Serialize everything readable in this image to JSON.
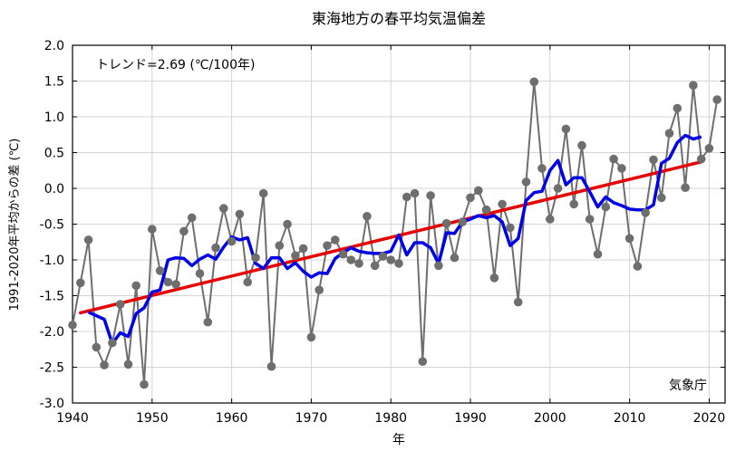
{
  "chart_data": {
    "type": "line",
    "title": "東海地方の春平均気温偏差",
    "xlabel": "年",
    "ylabel": "1991-2020年平均からの差 (℃)",
    "trend_label": "トレンド=2.69 (℃/100年)",
    "source": "気象庁",
    "xlim": [
      1940,
      2022
    ],
    "ylim": [
      -3.0,
      2.0
    ],
    "xticks": [
      1940,
      1950,
      1960,
      1970,
      1980,
      1990,
      2000,
      2010,
      2020
    ],
    "yticks": [
      -3.0,
      -2.5,
      -2.0,
      -1.5,
      -1.0,
      -0.5,
      0.0,
      0.5,
      1.0,
      1.5,
      2.0
    ],
    "ytick_labels": [
      "-3.0",
      "-2.5",
      "-2.0",
      "-1.5",
      "-1.0",
      "-0.5",
      "0.0",
      "0.5",
      "1.0",
      "1.5",
      "2.0"
    ],
    "grid": true,
    "colors": {
      "annual": "#6e6e6e",
      "moving_avg": "#0000e6",
      "trend": "#e60000",
      "grid": "#d4d4d4"
    },
    "series": [
      {
        "kind": "annual",
        "x": [
          1940,
          1941,
          1942,
          1943,
          1944,
          1945,
          1946,
          1947,
          1948,
          1949,
          1950,
          1951,
          1952,
          1953,
          1954,
          1955,
          1956,
          1957,
          1958,
          1959,
          1960,
          1961,
          1962,
          1963,
          1964,
          1965,
          1966,
          1967,
          1968,
          1969,
          1970,
          1971,
          1972,
          1973,
          1974,
          1975,
          1976,
          1977,
          1978,
          1979,
          1980,
          1981,
          1982,
          1983,
          1984,
          1985,
          1986,
          1987,
          1988,
          1989,
          1990,
          1991,
          1992,
          1993,
          1994,
          1995,
          1996,
          1997,
          1998,
          1999,
          2000,
          2001,
          2002,
          2003,
          2004,
          2005,
          2006,
          2007,
          2008,
          2009,
          2010,
          2011,
          2012,
          2013,
          2014,
          2015,
          2016,
          2017,
          2018,
          2019,
          2020,
          2021
        ],
        "y": [
          -1.91,
          -1.32,
          -0.72,
          -2.22,
          -2.47,
          -2.16,
          -1.62,
          -2.46,
          -1.36,
          -2.74,
          -0.57,
          -1.15,
          -1.31,
          -1.34,
          -0.6,
          -0.41,
          -1.19,
          -1.87,
          -0.83,
          -0.28,
          -0.74,
          -0.36,
          -1.31,
          -0.97,
          -0.07,
          -2.49,
          -0.8,
          -0.5,
          -0.94,
          -0.84,
          -2.08,
          -1.42,
          -0.8,
          -0.72,
          -0.92,
          -1.0,
          -1.05,
          -0.39,
          -1.08,
          -0.95,
          -1.0,
          -1.05,
          -0.12,
          -0.07,
          -2.42,
          -0.1,
          -1.08,
          -0.49,
          -0.97,
          -0.47,
          -0.13,
          -0.03,
          -0.3,
          -1.25,
          -0.22,
          -0.55,
          -1.59,
          0.09,
          1.49,
          0.28,
          -0.43,
          0.0,
          0.83,
          -0.22,
          0.6,
          -0.43,
          -0.92,
          -0.26,
          0.41,
          0.28,
          -0.7,
          -1.09,
          -0.34,
          0.4,
          -0.13,
          0.77,
          1.12,
          0.01,
          1.44,
          0.41,
          0.56,
          1.24
        ]
      },
      {
        "kind": "moving_avg",
        "x": [
          1942,
          1943,
          1944,
          1945,
          1946,
          1947,
          1948,
          1949,
          1950,
          1951,
          1952,
          1953,
          1954,
          1955,
          1956,
          1957,
          1958,
          1959,
          1960,
          1961,
          1962,
          1963,
          1964,
          1965,
          1966,
          1967,
          1968,
          1969,
          1970,
          1971,
          1972,
          1973,
          1974,
          1975,
          1976,
          1977,
          1978,
          1979,
          1980,
          1981,
          1982,
          1983,
          1984,
          1985,
          1986,
          1987,
          1988,
          1989,
          1990,
          1991,
          1992,
          1993,
          1994,
          1995,
          1996,
          1997,
          1998,
          1999,
          2000,
          2001,
          2002,
          2003,
          2004,
          2005,
          2006,
          2007,
          2008,
          2009,
          2010,
          2011,
          2012,
          2013,
          2014,
          2015,
          2016,
          2017,
          2018,
          2019
        ],
        "y": [
          -1.73,
          -1.78,
          -1.83,
          -2.17,
          -2.02,
          -2.07,
          -1.75,
          -1.67,
          -1.45,
          -1.42,
          -1.0,
          -0.97,
          -0.98,
          -1.08,
          -0.99,
          -0.93,
          -0.99,
          -0.82,
          -0.68,
          -0.72,
          -0.69,
          -1.05,
          -1.12,
          -0.97,
          -0.97,
          -1.12,
          -1.04,
          -1.16,
          -1.24,
          -1.18,
          -1.19,
          -0.98,
          -0.9,
          -0.83,
          -0.88,
          -0.9,
          -0.91,
          -0.91,
          -0.88,
          -0.65,
          -0.93,
          -0.76,
          -0.76,
          -0.83,
          -1.05,
          -0.62,
          -0.63,
          -0.47,
          -0.43,
          -0.38,
          -0.41,
          -0.38,
          -0.47,
          -0.8,
          -0.7,
          -0.17,
          -0.06,
          -0.04,
          0.25,
          0.39,
          0.05,
          0.15,
          0.15,
          -0.05,
          -0.26,
          -0.12,
          -0.2,
          -0.24,
          -0.29,
          -0.3,
          -0.3,
          -0.23,
          0.35,
          0.42,
          0.64,
          0.74,
          0.69,
          0.72
        ]
      },
      {
        "kind": "trend",
        "x": [
          1941,
          2019
        ],
        "y": [
          -1.74,
          0.37
        ]
      }
    ]
  }
}
